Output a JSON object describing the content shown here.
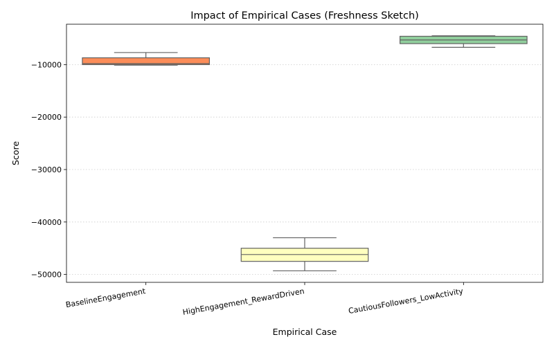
{
  "chart_data": {
    "type": "box",
    "title": "Impact of Empirical Cases (Freshness Sketch)",
    "xlabel": "Empirical Case",
    "ylabel": "Score",
    "ylim": [
      -51500,
      -2300
    ],
    "yticks": [
      -10000,
      -20000,
      -30000,
      -40000,
      -50000
    ],
    "ytick_labels": [
      "−10000",
      "−20000",
      "−30000",
      "−40000",
      "−50000"
    ],
    "grid": "y-dotted",
    "categories": [
      "BaselineEngagement",
      "HighEngagement_RewardDriven",
      "CautiousFollowers_LowActivity"
    ],
    "boxes": [
      {
        "name": "BaselineEngagement",
        "whisker_low": -10100,
        "q1": -10000,
        "median": -9800,
        "q3": -8700,
        "whisker_high": -7700,
        "color": "#fc8d59"
      },
      {
        "name": "HighEngagement_RewardDriven",
        "whisker_low": -49300,
        "q1": -47500,
        "median": -46200,
        "q3": -45000,
        "whisker_high": -43000,
        "color": "#ffffbf"
      },
      {
        "name": "CautiousFollowers_LowActivity",
        "whisker_low": -6700,
        "q1": -6000,
        "median": -5300,
        "q3": -4600,
        "whisker_high": -4500,
        "color": "#91cf9d"
      }
    ]
  }
}
